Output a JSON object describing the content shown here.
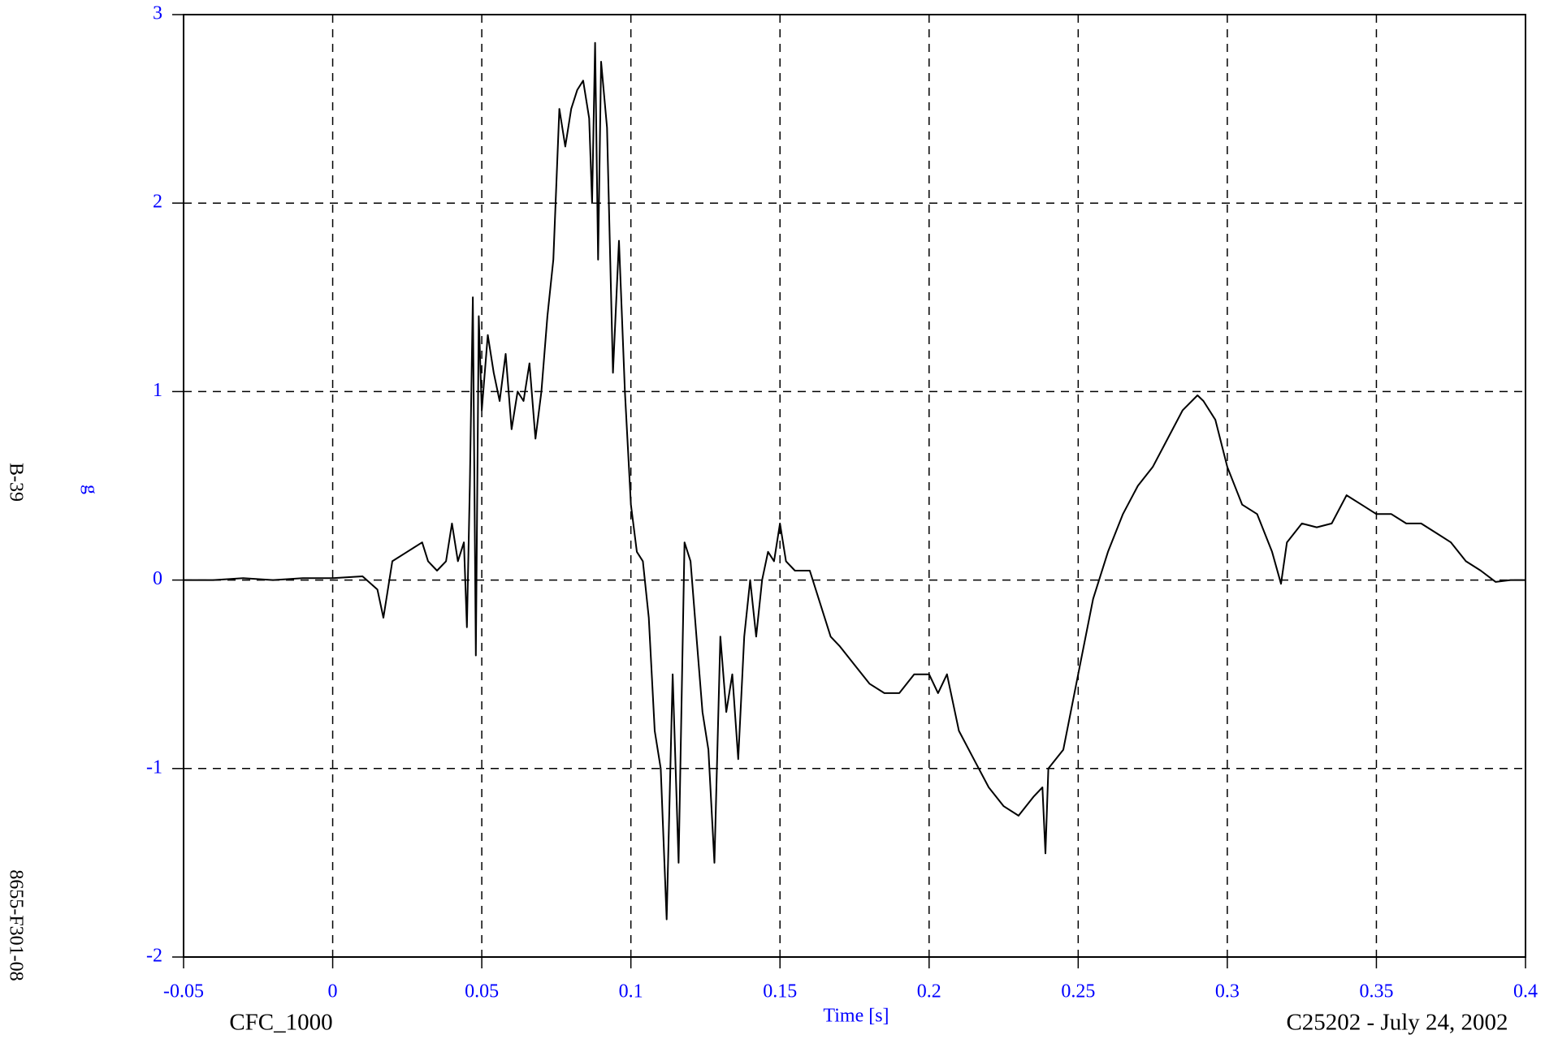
{
  "chart_data": {
    "type": "line",
    "xlabel": "Time [s]",
    "ylabel": "g",
    "annotations": {
      "filter": "CFC_1000",
      "test": "C25202 - July 24, 2002",
      "page": "B-39",
      "report": "8655-F301-08"
    },
    "xlim": [
      -0.05,
      0.4
    ],
    "xticks": [
      -0.05,
      0,
      0.05,
      0.1,
      0.15,
      0.2,
      0.25,
      0.3,
      0.35,
      0.4
    ],
    "ylim": [
      -2,
      3
    ],
    "yticks": [
      -2,
      -1,
      0,
      1,
      2,
      3
    ],
    "grid": true,
    "series": [
      {
        "color": "#000000",
        "x": [
          -0.05,
          -0.04,
          -0.03,
          -0.02,
          -0.01,
          0,
          0.01,
          0.015,
          0.017,
          0.02,
          0.025,
          0.03,
          0.032,
          0.035,
          0.038,
          0.04,
          0.042,
          0.044,
          0.045,
          0.046,
          0.047,
          0.048,
          0.049,
          0.05,
          0.052,
          0.054,
          0.056,
          0.058,
          0.06,
          0.062,
          0.064,
          0.066,
          0.068,
          0.07,
          0.072,
          0.074,
          0.076,
          0.078,
          0.08,
          0.082,
          0.084,
          0.086,
          0.087,
          0.088,
          0.089,
          0.09,
          0.092,
          0.094,
          0.096,
          0.098,
          0.1,
          0.102,
          0.104,
          0.106,
          0.108,
          0.11,
          0.112,
          0.114,
          0.116,
          0.118,
          0.12,
          0.122,
          0.124,
          0.126,
          0.128,
          0.13,
          0.132,
          0.134,
          0.136,
          0.138,
          0.14,
          0.142,
          0.144,
          0.146,
          0.148,
          0.15,
          0.152,
          0.155,
          0.16,
          0.163,
          0.167,
          0.17,
          0.175,
          0.18,
          0.185,
          0.19,
          0.195,
          0.2,
          0.203,
          0.206,
          0.21,
          0.215,
          0.22,
          0.225,
          0.23,
          0.235,
          0.238,
          0.239,
          0.24,
          0.245,
          0.25,
          0.255,
          0.26,
          0.265,
          0.27,
          0.275,
          0.28,
          0.285,
          0.29,
          0.292,
          0.296,
          0.3,
          0.305,
          0.31,
          0.315,
          0.318,
          0.32,
          0.325,
          0.33,
          0.335,
          0.34,
          0.345,
          0.35,
          0.355,
          0.36,
          0.365,
          0.37,
          0.375,
          0.38,
          0.385,
          0.39,
          0.395,
          0.4
        ],
        "values": [
          0,
          0,
          0.01,
          0,
          0.01,
          0.01,
          0.02,
          -0.05,
          -0.2,
          0.1,
          0.15,
          0.2,
          0.1,
          0.05,
          0.1,
          0.3,
          0.1,
          0.2,
          -0.25,
          0.5,
          1.5,
          -0.4,
          1.4,
          0.9,
          1.3,
          1.1,
          0.95,
          1.2,
          0.8,
          1.0,
          0.95,
          1.15,
          0.75,
          1.0,
          1.4,
          1.7,
          2.5,
          2.3,
          2.5,
          2.6,
          2.65,
          2.45,
          2.0,
          2.85,
          1.7,
          2.75,
          2.4,
          1.1,
          1.8,
          1.0,
          0.4,
          0.15,
          0.1,
          -0.2,
          -0.8,
          -1.0,
          -1.8,
          -0.5,
          -1.5,
          0.2,
          0.1,
          -0.3,
          -0.7,
          -0.9,
          -1.5,
          -0.3,
          -0.7,
          -0.5,
          -0.95,
          -0.3,
          0.0,
          -0.3,
          0.0,
          0.15,
          0.1,
          0.3,
          0.1,
          0.05,
          0.05,
          -0.1,
          -0.3,
          -0.35,
          -0.45,
          -0.55,
          -0.6,
          -0.6,
          -0.5,
          -0.5,
          -0.6,
          -0.5,
          -0.8,
          -0.95,
          -1.1,
          -1.2,
          -1.25,
          -1.15,
          -1.1,
          -1.45,
          -1.0,
          -0.9,
          -0.5,
          -0.1,
          0.15,
          0.35,
          0.5,
          0.6,
          0.75,
          0.9,
          0.98,
          0.95,
          0.85,
          0.6,
          0.4,
          0.35,
          0.15,
          -0.02,
          0.2,
          0.3,
          0.28,
          0.3,
          0.45,
          0.4,
          0.35,
          0.35,
          0.3,
          0.3,
          0.25,
          0.2,
          0.1,
          0.05,
          -0.01,
          0.0,
          0.0
        ]
      }
    ]
  }
}
